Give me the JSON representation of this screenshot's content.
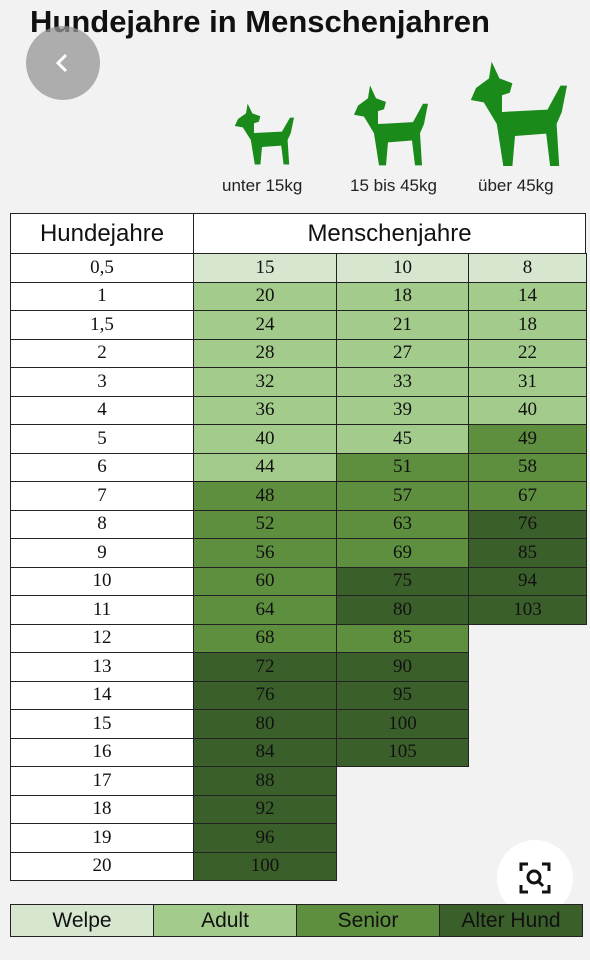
{
  "title": "Hundejahre in Menschenjahren",
  "dogs": [
    "unter 15kg",
    "15 bis 45kg",
    "über 45kg"
  ],
  "table": {
    "header": [
      "Hundejahre",
      "Menschenjahre"
    ],
    "rows": [
      {
        "dog_years": "0,5",
        "human_years": [
          15,
          10,
          8
        ],
        "stages": [
          0,
          0,
          0
        ]
      },
      {
        "dog_years": "1",
        "human_years": [
          20,
          18,
          14
        ],
        "stages": [
          1,
          1,
          1
        ]
      },
      {
        "dog_years": "1,5",
        "human_years": [
          24,
          21,
          18
        ],
        "stages": [
          1,
          1,
          1
        ]
      },
      {
        "dog_years": "2",
        "human_years": [
          28,
          27,
          22
        ],
        "stages": [
          1,
          1,
          1
        ]
      },
      {
        "dog_years": "3",
        "human_years": [
          32,
          33,
          31
        ],
        "stages": [
          1,
          1,
          1
        ]
      },
      {
        "dog_years": "4",
        "human_years": [
          36,
          39,
          40
        ],
        "stages": [
          1,
          1,
          1
        ]
      },
      {
        "dog_years": "5",
        "human_years": [
          40,
          45,
          49
        ],
        "stages": [
          1,
          1,
          2
        ]
      },
      {
        "dog_years": "6",
        "human_years": [
          44,
          51,
          58
        ],
        "stages": [
          1,
          2,
          2
        ]
      },
      {
        "dog_years": "7",
        "human_years": [
          48,
          57,
          67
        ],
        "stages": [
          2,
          2,
          2
        ]
      },
      {
        "dog_years": "8",
        "human_years": [
          52,
          63,
          76
        ],
        "stages": [
          2,
          2,
          3
        ]
      },
      {
        "dog_years": "9",
        "human_years": [
          56,
          69,
          85
        ],
        "stages": [
          2,
          2,
          3
        ]
      },
      {
        "dog_years": "10",
        "human_years": [
          60,
          75,
          94
        ],
        "stages": [
          2,
          3,
          3
        ]
      },
      {
        "dog_years": "11",
        "human_years": [
          64,
          80,
          103
        ],
        "stages": [
          2,
          3,
          3
        ]
      },
      {
        "dog_years": "12",
        "human_years": [
          68,
          85
        ],
        "stages": [
          2,
          2
        ]
      },
      {
        "dog_years": "13",
        "human_years": [
          72,
          90
        ],
        "stages": [
          3,
          3
        ]
      },
      {
        "dog_years": "14",
        "human_years": [
          76,
          95
        ],
        "stages": [
          3,
          3
        ]
      },
      {
        "dog_years": "15",
        "human_years": [
          80,
          100
        ],
        "stages": [
          3,
          3
        ]
      },
      {
        "dog_years": "16",
        "human_years": [
          84,
          105
        ],
        "stages": [
          3,
          3
        ]
      },
      {
        "dog_years": "17",
        "human_years": [
          88
        ],
        "stages": [
          3
        ]
      },
      {
        "dog_years": "18",
        "human_years": [
          92
        ],
        "stages": [
          3
        ]
      },
      {
        "dog_years": "19",
        "human_years": [
          96
        ],
        "stages": [
          3
        ]
      },
      {
        "dog_years": "20",
        "human_years": [
          100
        ],
        "stages": [
          3
        ]
      }
    ]
  },
  "legend": [
    {
      "label": "Welpe",
      "color": "#d6e6cf"
    },
    {
      "label": "Adult",
      "color": "#a3cc8c"
    },
    {
      "label": "Senior",
      "color": "#5d8f3f"
    },
    {
      "label": "Alter Hund",
      "color": "#3b5f2a"
    }
  ]
}
